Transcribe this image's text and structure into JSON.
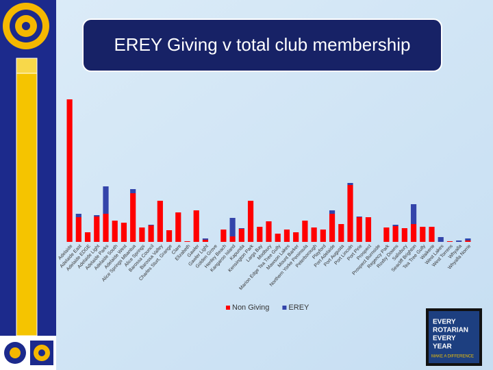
{
  "chart_data": {
    "type": "bar",
    "stacked": true,
    "title": "EREY Giving v total club membership",
    "categories": [
      "Adelaide",
      "Adelaide East",
      "Adelaide EDGE",
      "Adelaide Light",
      "Adelaide Parks",
      "Adelaide South",
      "Adelaide West",
      "Alice Springs Mbantua",
      "Alice Springs",
      "Barossa Council",
      "Barossa Valley",
      "Charles Sturt, Grange",
      "Clare",
      "Elizabeth",
      "Gawler",
      "Gawler Light",
      "Golden Grove",
      "Henley Beach",
      "Kangaroo Island",
      "Kapunda",
      "Kensington Park",
      "Largs Bay",
      "Modbury",
      "Marion Edge Tea Tree Gully",
      "Mawson Lakes",
      "Mount Barker",
      "Northern Yorke Peninsula",
      "Peterborough",
      "Playford",
      "Port Adelaide",
      "Port Augusta",
      "Port Lincoln",
      "Port Pirie",
      "Prospect",
      "Prospect Burnside",
      "Regency Park",
      "Roxby Downs",
      "Salisbury",
      "Seacliff Brighton",
      "Tea Tree Gully",
      "Waikerie",
      "West Lakes",
      "West Torrens",
      "Whyalla",
      "Whyalla Norrie"
    ],
    "series": [
      {
        "name": "Non Giving",
        "color": "#ff0000",
        "values": [
          208,
          36,
          14,
          37,
          41,
          31,
          28,
          71,
          21,
          24,
          60,
          17,
          43,
          1,
          46,
          3,
          0,
          18,
          8,
          19,
          60,
          22,
          30,
          12,
          18,
          14,
          31,
          21,
          18,
          41,
          26,
          83,
          36,
          36,
          0,
          21,
          23,
          20,
          26,
          22,
          22,
          0,
          1,
          0,
          2
        ]
      },
      {
        "name": "EREY",
        "color": "#3344aa",
        "values": [
          0,
          5,
          0,
          2,
          40,
          0,
          0,
          6,
          0,
          1,
          0,
          0,
          0,
          0,
          0,
          2,
          0,
          0,
          27,
          1,
          0,
          0,
          0,
          0,
          0,
          0,
          0,
          0,
          0,
          5,
          0,
          3,
          1,
          0,
          0,
          0,
          2,
          0,
          29,
          0,
          0,
          7,
          0,
          2,
          3
        ]
      }
    ],
    "ylim": [
      0,
      210
    ]
  },
  "badge": {
    "lines": [
      "EVERY",
      "ROTARIAN",
      "EVERY",
      "YEAR"
    ],
    "tagline": "MAKE A DIFFERENCE"
  }
}
